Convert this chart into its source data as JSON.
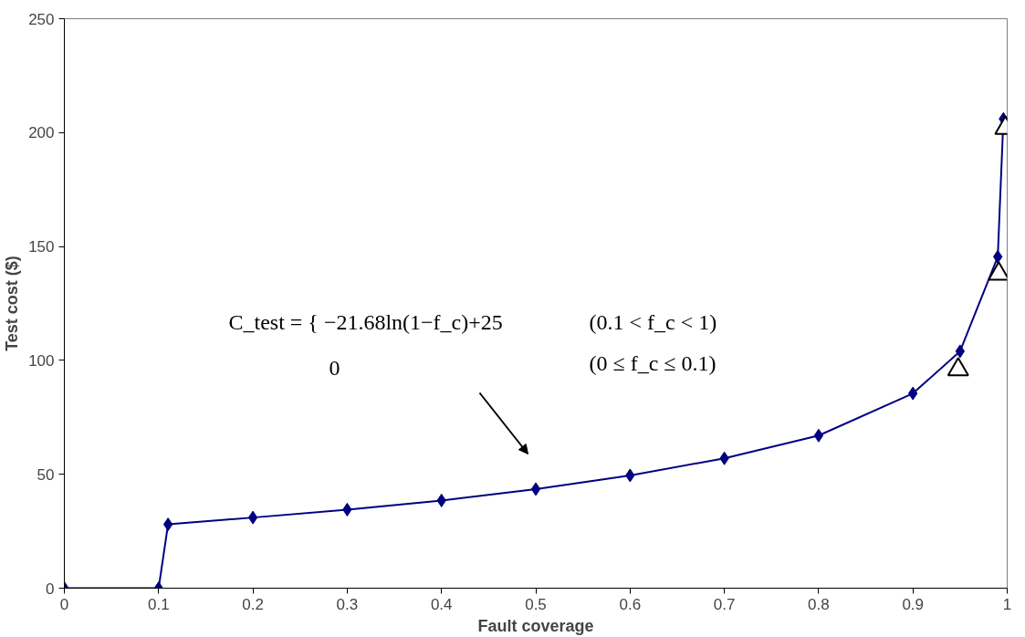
{
  "chart_data": {
    "type": "line",
    "xlabel": "Fault coverage",
    "ylabel": "Test cost ($)",
    "xlim": [
      0,
      1
    ],
    "ylim": [
      0,
      250
    ],
    "xticks": [
      0,
      0.1,
      0.2,
      0.3,
      0.4,
      0.5,
      0.6,
      0.7,
      0.8,
      0.9,
      1
    ],
    "yticks": [
      0,
      50,
      100,
      150,
      200,
      250
    ],
    "grid": false,
    "marker": "diamond",
    "line_style": "solid",
    "series": [
      {
        "color": "#000080",
        "x": [
          0,
          0.1,
          0.11,
          0.2,
          0.3,
          0.4,
          0.5,
          0.6,
          0.7,
          0.8,
          0.9,
          0.95,
          0.99,
          0.996
        ],
        "values": [
          0,
          0,
          28,
          31,
          34.5,
          38.5,
          43.5,
          49.5,
          57,
          67,
          85.5,
          104,
          145.5,
          206
        ]
      },
      {
        "type": "scatter",
        "marker": "triangle",
        "color": "#000000",
        "x": [
          0.948,
          0.991,
          0.998
        ],
        "values": [
          96,
          138,
          202
        ]
      }
    ],
    "annotations": [
      "C_test = { −21.68ln(1−f_c)+25",
      "(0.1 < f_c < 1)",
      "0",
      "(0 ≤ f_c ≤ 0.1)"
    ]
  }
}
